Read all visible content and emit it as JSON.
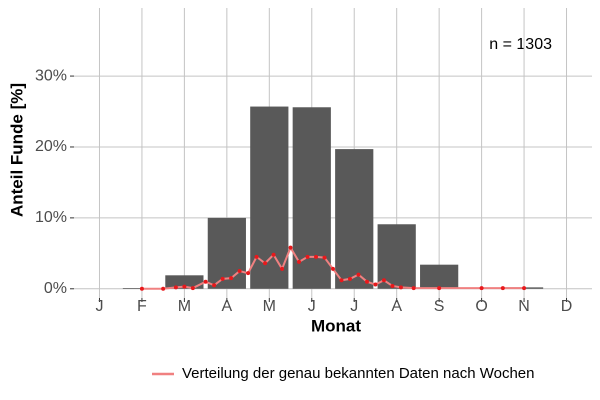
{
  "chart_data": {
    "type": "bar",
    "xlabel": "Monat",
    "ylabel": "Anteil Funde [%]",
    "annotation": "n = 1303",
    "categories": [
      "J",
      "F",
      "M",
      "A",
      "M",
      "J",
      "J",
      "A",
      "S",
      "O",
      "N",
      "D"
    ],
    "values": [
      0,
      0.1,
      1.9,
      10.0,
      25.7,
      25.6,
      19.7,
      9.1,
      3.4,
      0.1,
      0.2,
      0
    ],
    "color": "#595959",
    "ylim": [
      -1.3,
      39.6
    ],
    "yticks": [
      {
        "value": 0,
        "label": "0%"
      },
      {
        "value": 10,
        "label": "10%"
      },
      {
        "value": 20,
        "label": "20%"
      },
      {
        "value": 30,
        "label": "30%"
      }
    ],
    "grid": true,
    "series": [
      {
        "name": "Verteilung der genau bekannten Daten nach Wochen",
        "color": "#e8191c",
        "legend_color": "#f08080",
        "x": [
          2.0,
          2.5,
          2.8,
          3.0,
          3.2,
          3.5,
          3.7,
          3.9,
          4.1,
          4.3,
          4.5,
          4.7,
          4.9,
          5.1,
          5.3,
          5.5,
          5.7,
          5.9,
          6.1,
          6.3,
          6.5,
          6.7,
          6.9,
          7.1,
          7.3,
          7.5,
          7.7,
          7.9,
          8.1,
          8.4,
          9.0,
          10.0,
          10.5,
          11.0
        ],
        "values": [
          0,
          0,
          0.2,
          0.3,
          0.1,
          1.0,
          0.5,
          1.4,
          1.5,
          2.5,
          2.2,
          4.5,
          3.6,
          4.8,
          2.8,
          5.8,
          3.8,
          4.5,
          4.5,
          4.4,
          2.8,
          1.2,
          1.4,
          2.0,
          1.0,
          0.6,
          1.2,
          0.4,
          0.2,
          0.1,
          0.1,
          0.1,
          0.1,
          0.1
        ]
      }
    ],
    "legend": "bottom-right"
  }
}
